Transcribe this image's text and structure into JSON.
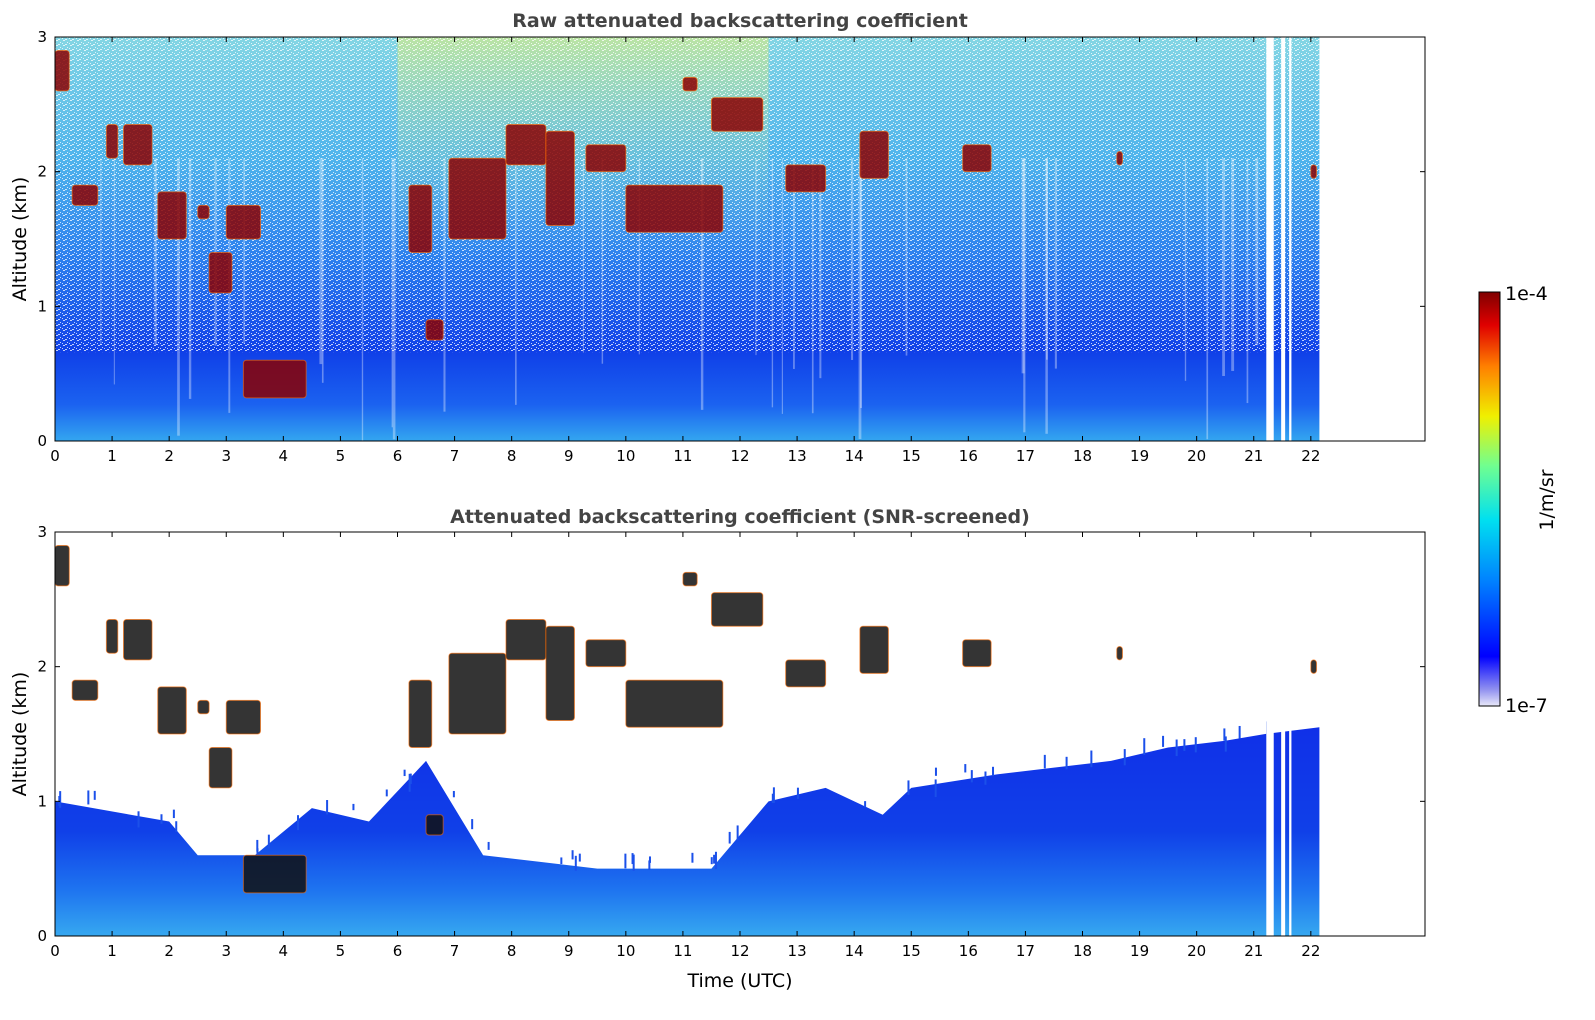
{
  "chart_data": [
    {
      "type": "heatmap",
      "title": "Raw attenuated backscattering coefficient",
      "xlabel": "",
      "ylabel": "Altitude (km)",
      "xlim": [
        0,
        24
      ],
      "ylim": [
        0,
        3
      ],
      "x_ticks": [
        "0",
        "1",
        "2",
        "3",
        "4",
        "5",
        "6",
        "7",
        "8",
        "9",
        "10",
        "11",
        "12",
        "13",
        "14",
        "15",
        "16",
        "17",
        "18",
        "19",
        "20",
        "21",
        "22"
      ],
      "y_ticks": [
        "0",
        "1",
        "2",
        "3"
      ],
      "data_end_time": 22.15,
      "data_gaps": [
        [
          21.22,
          21.35
        ],
        [
          21.48,
          21.55
        ],
        [
          21.62,
          21.66
        ]
      ],
      "screened": false,
      "cloud_segments": [
        {
          "x": [
            0.0,
            0.25
          ],
          "y": [
            2.6,
            2.9
          ]
        },
        {
          "x": [
            0.3,
            0.75
          ],
          "y": [
            1.75,
            1.9
          ]
        },
        {
          "x": [
            0.9,
            1.1
          ],
          "y": [
            2.1,
            2.35
          ]
        },
        {
          "x": [
            1.2,
            1.7
          ],
          "y": [
            2.05,
            2.35
          ]
        },
        {
          "x": [
            1.8,
            2.3
          ],
          "y": [
            1.5,
            1.85
          ]
        },
        {
          "x": [
            2.5,
            2.7
          ],
          "y": [
            1.65,
            1.75
          ]
        },
        {
          "x": [
            2.7,
            3.1
          ],
          "y": [
            1.1,
            1.4
          ]
        },
        {
          "x": [
            3.0,
            3.6
          ],
          "y": [
            1.5,
            1.75
          ]
        },
        {
          "x": [
            3.3,
            4.4
          ],
          "y": [
            0.32,
            0.6
          ]
        },
        {
          "x": [
            6.2,
            6.6
          ],
          "y": [
            1.4,
            1.9
          ]
        },
        {
          "x": [
            6.5,
            6.8
          ],
          "y": [
            0.75,
            0.9
          ]
        },
        {
          "x": [
            6.9,
            7.9
          ],
          "y": [
            1.5,
            2.1
          ]
        },
        {
          "x": [
            7.9,
            8.6
          ],
          "y": [
            2.05,
            2.35
          ]
        },
        {
          "x": [
            8.6,
            9.1
          ],
          "y": [
            1.6,
            2.3
          ]
        },
        {
          "x": [
            9.3,
            10.0
          ],
          "y": [
            2.0,
            2.2
          ]
        },
        {
          "x": [
            10.0,
            11.7
          ],
          "y": [
            1.55,
            1.9
          ]
        },
        {
          "x": [
            11.0,
            11.25
          ],
          "y": [
            2.6,
            2.7
          ]
        },
        {
          "x": [
            11.5,
            12.4
          ],
          "y": [
            2.3,
            2.55
          ]
        },
        {
          "x": [
            12.8,
            13.5
          ],
          "y": [
            1.85,
            2.05
          ]
        },
        {
          "x": [
            14.1,
            14.6
          ],
          "y": [
            1.95,
            2.3
          ]
        },
        {
          "x": [
            15.9,
            16.4
          ],
          "y": [
            2.0,
            2.2
          ]
        },
        {
          "x": [
            18.6,
            18.7
          ],
          "y": [
            2.05,
            2.15
          ]
        },
        {
          "x": [
            22.0,
            22.1
          ],
          "y": [
            1.95,
            2.05
          ]
        }
      ]
    },
    {
      "type": "heatmap",
      "title": "Attenuated backscattering coefficient (SNR-screened)",
      "xlabel": "Time (UTC)",
      "ylabel": "Altitude (km)",
      "xlim": [
        0,
        24
      ],
      "ylim": [
        0,
        3
      ],
      "x_ticks": [
        "0",
        "1",
        "2",
        "3",
        "4",
        "5",
        "6",
        "7",
        "8",
        "9",
        "10",
        "11",
        "12",
        "13",
        "14",
        "15",
        "16",
        "17",
        "18",
        "19",
        "20",
        "21",
        "22"
      ],
      "y_ticks": [
        "0",
        "1",
        "2",
        "3"
      ],
      "data_end_time": 22.15,
      "data_gaps": [
        [
          21.22,
          21.35
        ],
        [
          21.48,
          21.55
        ],
        [
          21.62,
          21.66
        ]
      ],
      "screened": true,
      "valid_signal_top_km": [
        [
          0,
          1.0
        ],
        [
          2,
          0.85
        ],
        [
          2.5,
          0.6
        ],
        [
          3.5,
          0.6
        ],
        [
          4.5,
          0.95
        ],
        [
          5.5,
          0.85
        ],
        [
          6.5,
          1.3
        ],
        [
          7.5,
          0.6
        ],
        [
          8.5,
          0.55
        ],
        [
          9.5,
          0.5
        ],
        [
          10.5,
          0.5
        ],
        [
          11.5,
          0.5
        ],
        [
          12.5,
          1.0
        ],
        [
          13.5,
          1.1
        ],
        [
          14.5,
          0.9
        ],
        [
          15.0,
          1.1
        ],
        [
          16.5,
          1.2
        ],
        [
          17.5,
          1.25
        ],
        [
          18.5,
          1.3
        ],
        [
          19.5,
          1.4
        ],
        [
          20.5,
          1.45
        ],
        [
          21.2,
          1.5
        ],
        [
          22.15,
          1.55
        ]
      ],
      "cloud_segments": "same as panel 1"
    }
  ],
  "colorbar": {
    "min_label": "1e-7",
    "max_label": "1e-4",
    "unit_label": "1/m/sr",
    "scale": "log",
    "colormap": "jet"
  },
  "colors": {
    "background": "#ffffff",
    "title": "#444444",
    "low_signal": "#1030e8",
    "near_surface": "#33a6f0",
    "noise": "#6fd0f0",
    "cloud": "#8b0000"
  }
}
